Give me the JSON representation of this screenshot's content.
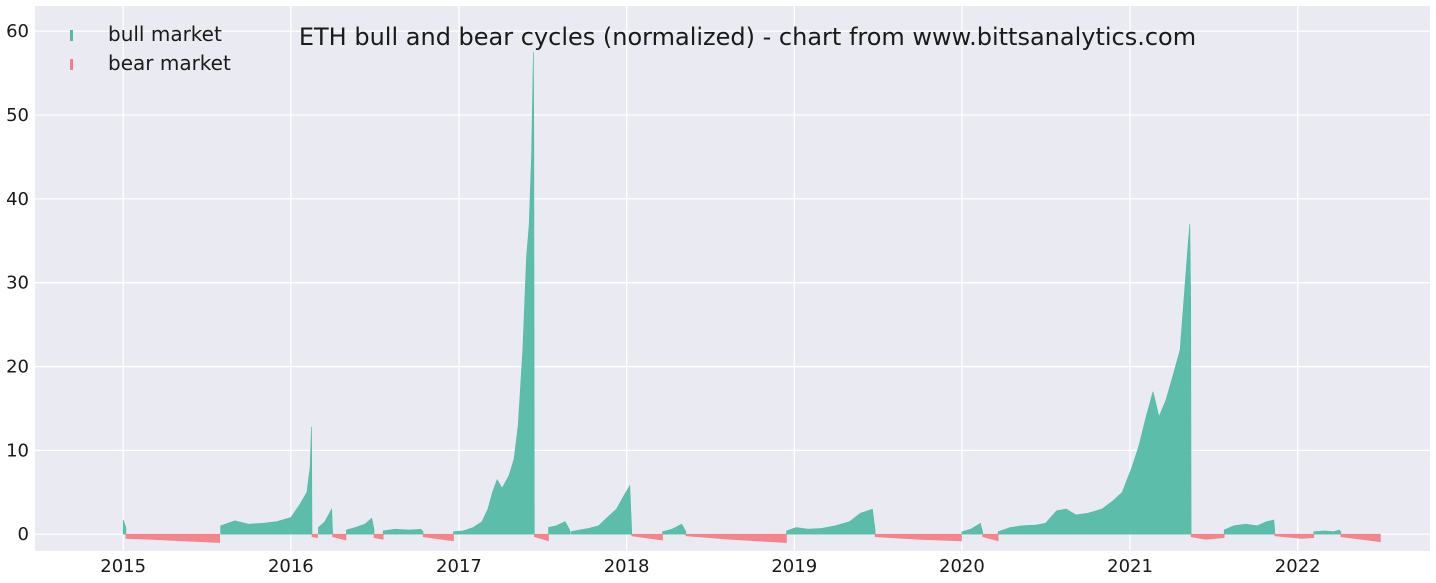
{
  "chart_data": {
    "type": "bar",
    "title": "ETH bull and bear cycles (normalized)  - chart from www.bittsanalytics.com",
    "xlabel": "",
    "ylabel": "",
    "xlim": [
      "2014-06-23",
      "2022-10-16"
    ],
    "ylim": [
      -2,
      63
    ],
    "x_ticks": [
      "2015",
      "2016",
      "2017",
      "2018",
      "2019",
      "2020",
      "2021",
      "2022"
    ],
    "y_ticks": [
      0,
      10,
      20,
      30,
      40,
      50,
      60
    ],
    "grid": true,
    "legend_position": "top-left",
    "colors": {
      "bull": "#54bba5",
      "bear": "#f67f86",
      "background": "#eaeaf2",
      "grid": "#ffffff"
    },
    "series": [
      {
        "name": "bull market",
        "segments": [
          {
            "points": [
              [
                "2015-01-01",
                1.7
              ],
              [
                "2015-01-07",
                0.8
              ]
            ]
          },
          {
            "points": [
              [
                "2015-08-01",
                1.0
              ],
              [
                "2015-09-01",
                1.6
              ],
              [
                "2015-10-01",
                1.2
              ],
              [
                "2015-11-01",
                1.3
              ],
              [
                "2015-12-01",
                1.5
              ],
              [
                "2016-01-01",
                2.0
              ],
              [
                "2016-01-20",
                3.5
              ],
              [
                "2016-02-05",
                5.0
              ],
              [
                "2016-02-12",
                8.0
              ],
              [
                "2016-02-15",
                12.8
              ],
              [
                "2016-02-16",
                0.5
              ]
            ]
          },
          {
            "points": [
              [
                "2016-03-01",
                0.8
              ],
              [
                "2016-03-15",
                1.5
              ],
              [
                "2016-03-30",
                3.0
              ],
              [
                "2016-04-01",
                0.3
              ]
            ]
          },
          {
            "points": [
              [
                "2016-05-01",
                0.5
              ],
              [
                "2016-05-20",
                0.8
              ],
              [
                "2016-06-10",
                1.2
              ],
              [
                "2016-06-25",
                1.9
              ],
              [
                "2016-06-30",
                0.6
              ]
            ]
          },
          {
            "points": [
              [
                "2016-07-20",
                0.4
              ],
              [
                "2016-08-15",
                0.6
              ],
              [
                "2016-09-15",
                0.5
              ],
              [
                "2016-10-10",
                0.6
              ],
              [
                "2016-10-15",
                0.3
              ]
            ]
          },
          {
            "points": [
              [
                "2016-12-20",
                0.3
              ],
              [
                "2017-01-10",
                0.4
              ],
              [
                "2017-02-01",
                0.8
              ],
              [
                "2017-02-20",
                1.5
              ],
              [
                "2017-03-05",
                3.0
              ],
              [
                "2017-03-15",
                5.0
              ],
              [
                "2017-03-25",
                6.5
              ],
              [
                "2017-04-05",
                5.5
              ],
              [
                "2017-04-20",
                7.0
              ],
              [
                "2017-05-01",
                9.0
              ],
              [
                "2017-05-10",
                13.0
              ],
              [
                "2017-05-20",
                22.0
              ],
              [
                "2017-05-28",
                33.0
              ],
              [
                "2017-06-03",
                37.0
              ],
              [
                "2017-06-08",
                45.0
              ],
              [
                "2017-06-12",
                57.5
              ],
              [
                "2017-06-13",
                48.0
              ],
              [
                "2017-06-14",
                0.5
              ]
            ]
          },
          {
            "points": [
              [
                "2017-07-15",
                0.8
              ],
              [
                "2017-08-01",
                1.0
              ],
              [
                "2017-08-20",
                1.5
              ],
              [
                "2017-08-30",
                0.5
              ]
            ]
          },
          {
            "points": [
              [
                "2017-09-01",
                0.3
              ],
              [
                "2017-09-20",
                0.5
              ],
              [
                "2017-10-10",
                0.7
              ],
              [
                "2017-11-01",
                1.0
              ],
              [
                "2017-11-20",
                2.0
              ],
              [
                "2017-12-10",
                3.0
              ],
              [
                "2017-12-25",
                4.5
              ],
              [
                "2018-01-08",
                5.8
              ],
              [
                "2018-01-12",
                0.4
              ]
            ]
          },
          {
            "points": [
              [
                "2018-03-20",
                0.3
              ],
              [
                "2018-04-10",
                0.6
              ],
              [
                "2018-05-01",
                1.2
              ],
              [
                "2018-05-10",
                0.3
              ]
            ]
          },
          {
            "points": [
              [
                "2018-12-15",
                0.4
              ],
              [
                "2019-01-05",
                0.8
              ],
              [
                "2019-02-01",
                0.6
              ],
              [
                "2019-03-01",
                0.7
              ],
              [
                "2019-04-01",
                1.0
              ],
              [
                "2019-05-01",
                1.5
              ],
              [
                "2019-05-25",
                2.5
              ],
              [
                "2019-06-20",
                3.0
              ],
              [
                "2019-06-26",
                0.5
              ]
            ]
          },
          {
            "points": [
              [
                "2020-01-01",
                0.3
              ],
              [
                "2020-01-20",
                0.6
              ],
              [
                "2020-02-10",
                1.3
              ],
              [
                "2020-02-15",
                0.3
              ]
            ]
          },
          {
            "points": [
              [
                "2020-03-20",
                0.3
              ],
              [
                "2020-04-15",
                0.8
              ],
              [
                "2020-05-10",
                1.0
              ],
              [
                "2020-06-10",
                1.1
              ],
              [
                "2020-07-01",
                1.3
              ],
              [
                "2020-07-25",
                2.8
              ],
              [
                "2020-08-15",
                3.0
              ],
              [
                "2020-09-05",
                2.3
              ],
              [
                "2020-10-01",
                2.5
              ],
              [
                "2020-11-01",
                3.0
              ],
              [
                "2020-11-25",
                4.0
              ],
              [
                "2020-12-15",
                5.0
              ],
              [
                "2021-01-05",
                8.0
              ],
              [
                "2021-01-20",
                10.5
              ],
              [
                "2021-02-05",
                14.0
              ],
              [
                "2021-02-20",
                17.0
              ],
              [
                "2021-03-05",
                14.0
              ],
              [
                "2021-03-20",
                16.0
              ],
              [
                "2021-04-05",
                19.0
              ],
              [
                "2021-04-20",
                22.0
              ],
              [
                "2021-05-01",
                30.0
              ],
              [
                "2021-05-08",
                35.0
              ],
              [
                "2021-05-11",
                37.0
              ],
              [
                "2021-05-13",
                28.0
              ],
              [
                "2021-05-14",
                0.5
              ]
            ]
          },
          {
            "points": [
              [
                "2021-07-25",
                0.5
              ],
              [
                "2021-08-15",
                1.0
              ],
              [
                "2021-09-10",
                1.2
              ],
              [
                "2021-10-05",
                1.0
              ],
              [
                "2021-10-25",
                1.5
              ],
              [
                "2021-11-10",
                1.7
              ],
              [
                "2021-11-12",
                0.5
              ]
            ]
          },
          {
            "points": [
              [
                "2022-02-05",
                0.3
              ],
              [
                "2022-03-01",
                0.4
              ],
              [
                "2022-03-20",
                0.3
              ],
              [
                "2022-04-02",
                0.5
              ],
              [
                "2022-04-05",
                0.2
              ]
            ]
          }
        ]
      },
      {
        "name": "bear market",
        "segments": [
          {
            "points": [
              [
                "2015-01-07",
                -0.5
              ],
              [
                "2015-03-01",
                -0.6
              ],
              [
                "2015-05-15",
                -0.8
              ],
              [
                "2015-07-30",
                -1.0
              ]
            ]
          },
          {
            "points": [
              [
                "2016-02-16",
                -0.3
              ],
              [
                "2016-02-28",
                -0.4
              ]
            ]
          },
          {
            "points": [
              [
                "2016-04-01",
                -0.3
              ],
              [
                "2016-04-30",
                -0.7
              ]
            ]
          },
          {
            "points": [
              [
                "2016-06-30",
                -0.4
              ],
              [
                "2016-07-20",
                -0.6
              ]
            ]
          },
          {
            "points": [
              [
                "2016-10-15",
                -0.3
              ],
              [
                "2016-12-20",
                -0.8
              ]
            ]
          },
          {
            "points": [
              [
                "2017-06-14",
                -0.3
              ],
              [
                "2017-07-15",
                -0.8
              ]
            ]
          },
          {
            "points": [
              [
                "2018-01-12",
                -0.2
              ],
              [
                "2018-03-20",
                -0.7
              ]
            ]
          },
          {
            "points": [
              [
                "2018-05-10",
                -0.2
              ],
              [
                "2018-08-15",
                -0.6
              ],
              [
                "2018-12-15",
                -1.0
              ]
            ]
          },
          {
            "points": [
              [
                "2019-06-26",
                -0.3
              ],
              [
                "2019-09-30",
                -0.6
              ],
              [
                "2019-12-31",
                -0.8
              ]
            ]
          },
          {
            "points": [
              [
                "2020-02-15",
                -0.3
              ],
              [
                "2020-03-20",
                -0.8
              ]
            ]
          },
          {
            "points": [
              [
                "2021-05-14",
                -0.3
              ],
              [
                "2021-06-15",
                -0.6
              ],
              [
                "2021-07-25",
                -0.4
              ]
            ]
          },
          {
            "points": [
              [
                "2021-11-12",
                -0.2
              ],
              [
                "2022-01-10",
                -0.5
              ],
              [
                "2022-02-05",
                -0.4
              ]
            ]
          },
          {
            "points": [
              [
                "2022-04-05",
                -0.3
              ],
              [
                "2022-05-20",
                -0.6
              ],
              [
                "2022-06-30",
                -0.9
              ]
            ]
          }
        ]
      }
    ]
  }
}
